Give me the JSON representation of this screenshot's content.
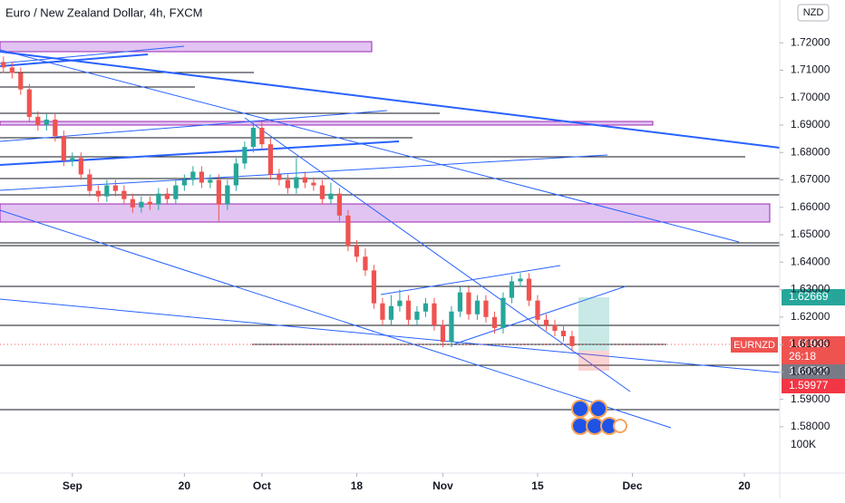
{
  "chart_data": {
    "type": "candlestick",
    "title": "Euro / New Zealand Dollar, 4h, FXCM",
    "currency": "NZD",
    "volume_label": "100K",
    "up_color": "#26a69a",
    "down_color": "#ef5350",
    "xlim": [
      -8.4,
      82.1
    ],
    "ylim": [
      1.5631,
      1.7356
    ],
    "xticks": [
      {
        "value": 0,
        "label": "Sep"
      },
      {
        "value": 13,
        "label": "20"
      },
      {
        "value": 22,
        "label": "Oct"
      },
      {
        "value": 33,
        "label": "18"
      },
      {
        "value": 43,
        "label": "Nov"
      },
      {
        "value": 54,
        "label": "15"
      },
      {
        "value": 65,
        "label": "Dec"
      },
      {
        "value": 78,
        "label": "20"
      }
    ],
    "yticks": [
      {
        "value": 1.58,
        "label": "1.58000"
      },
      {
        "value": 1.59,
        "label": "1.59000"
      },
      {
        "value": 1.6,
        "label": "1.60000"
      },
      {
        "value": 1.61,
        "label": "1.61000"
      },
      {
        "value": 1.62,
        "label": "1.62000"
      },
      {
        "value": 1.63,
        "label": "1.63000"
      },
      {
        "value": 1.64,
        "label": "1.64000"
      },
      {
        "value": 1.65,
        "label": "1.65000"
      },
      {
        "value": 1.66,
        "label": "1.66000"
      },
      {
        "value": 1.67,
        "label": "1.67000"
      },
      {
        "value": 1.68,
        "label": "1.68000"
      },
      {
        "value": 1.69,
        "label": "1.69000"
      },
      {
        "value": 1.7,
        "label": "1.70000"
      },
      {
        "value": 1.71,
        "label": "1.71000"
      },
      {
        "value": 1.72,
        "label": "1.72000"
      }
    ],
    "x": [
      -8,
      -7,
      -6,
      -5,
      -4,
      -3,
      -2,
      -1,
      0,
      1,
      2,
      3,
      4,
      5,
      6,
      7,
      8,
      9,
      10,
      11,
      12,
      13,
      14,
      15,
      16,
      17,
      18,
      19,
      20,
      21,
      22,
      23,
      24,
      25,
      26,
      27,
      28,
      29,
      30,
      31,
      32,
      33,
      34,
      35,
      36,
      37,
      38,
      39,
      40,
      41,
      42,
      43,
      44,
      45,
      46,
      47,
      48,
      49,
      50,
      51,
      52,
      53,
      54,
      55,
      56,
      57,
      58
    ],
    "candles": [
      [
        1.713,
        1.715,
        1.709,
        1.711
      ],
      [
        1.711,
        1.713,
        1.707,
        1.709
      ],
      [
        1.709,
        1.711,
        1.701,
        1.703
      ],
      [
        1.703,
        1.705,
        1.691,
        1.693
      ],
      [
        1.693,
        1.695,
        1.688,
        1.69
      ],
      [
        1.69,
        1.694,
        1.688,
        1.692
      ],
      [
        1.692,
        1.694,
        1.684,
        1.686
      ],
      [
        1.686,
        1.688,
        1.675,
        1.677
      ],
      [
        1.677,
        1.68,
        1.675,
        1.678
      ],
      [
        1.678,
        1.68,
        1.67,
        1.672
      ],
      [
        1.672,
        1.674,
        1.664,
        1.666
      ],
      [
        1.666,
        1.668,
        1.662,
        1.664
      ],
      [
        1.664,
        1.67,
        1.662,
        1.668
      ],
      [
        1.668,
        1.67,
        1.664,
        1.666
      ],
      [
        1.666,
        1.668,
        1.661,
        1.663
      ],
      [
        1.663,
        1.665,
        1.658,
        1.66
      ],
      [
        1.66,
        1.664,
        1.658,
        1.662
      ],
      [
        1.662,
        1.664,
        1.659,
        1.661
      ],
      [
        1.661,
        1.667,
        1.659,
        1.665
      ],
      [
        1.665,
        1.667,
        1.661,
        1.663
      ],
      [
        1.663,
        1.67,
        1.661,
        1.668
      ],
      [
        1.668,
        1.672,
        1.666,
        1.67
      ],
      [
        1.67,
        1.675,
        1.668,
        1.673
      ],
      [
        1.673,
        1.675,
        1.667,
        1.669
      ],
      [
        1.669,
        1.672,
        1.667,
        1.67
      ],
      [
        1.67,
        1.672,
        1.655,
        1.661
      ],
      [
        1.661,
        1.67,
        1.659,
        1.668
      ],
      [
        1.668,
        1.678,
        1.666,
        1.676
      ],
      [
        1.676,
        1.684,
        1.674,
        1.682
      ],
      [
        1.682,
        1.691,
        1.68,
        1.689
      ],
      [
        1.689,
        1.691,
        1.681,
        1.683
      ],
      [
        1.683,
        1.685,
        1.67,
        1.672
      ],
      [
        1.672,
        1.674,
        1.668,
        1.67
      ],
      [
        1.67,
        1.672,
        1.665,
        1.667
      ],
      [
        1.667,
        1.678,
        1.665,
        1.671
      ],
      [
        1.671,
        1.673,
        1.667,
        1.669
      ],
      [
        1.669,
        1.671,
        1.666,
        1.668
      ],
      [
        1.668,
        1.67,
        1.661,
        1.663
      ],
      [
        1.663,
        1.669,
        1.661,
        1.665
      ],
      [
        1.665,
        1.667,
        1.655,
        1.657
      ],
      [
        1.657,
        1.659,
        1.644,
        1.646
      ],
      [
        1.646,
        1.648,
        1.64,
        1.642
      ],
      [
        1.642,
        1.645,
        1.635,
        1.637
      ],
      [
        1.637,
        1.639,
        1.623,
        1.625
      ],
      [
        1.625,
        1.627,
        1.617,
        1.619
      ],
      [
        1.619,
        1.628,
        1.617,
        1.624
      ],
      [
        1.624,
        1.63,
        1.622,
        1.626
      ],
      [
        1.626,
        1.628,
        1.617,
        1.619
      ],
      [
        1.619,
        1.624,
        1.617,
        1.622
      ],
      [
        1.622,
        1.627,
        1.62,
        1.625
      ],
      [
        1.625,
        1.627,
        1.615,
        1.617
      ],
      [
        1.617,
        1.619,
        1.609,
        1.611
      ],
      [
        1.611,
        1.624,
        1.609,
        1.622
      ],
      [
        1.622,
        1.631,
        1.62,
        1.629
      ],
      [
        1.629,
        1.631,
        1.619,
        1.621
      ],
      [
        1.621,
        1.628,
        1.619,
        1.626
      ],
      [
        1.626,
        1.628,
        1.618,
        1.62
      ],
      [
        1.62,
        1.622,
        1.614,
        1.616
      ],
      [
        1.616,
        1.629,
        1.614,
        1.627
      ],
      [
        1.627,
        1.635,
        1.625,
        1.633
      ],
      [
        1.633,
        1.636,
        1.631,
        1.634
      ],
      [
        1.634,
        1.636,
        1.624,
        1.626
      ],
      [
        1.626,
        1.628,
        1.617,
        1.619
      ],
      [
        1.619,
        1.621,
        1.615,
        1.617
      ],
      [
        1.617,
        1.619,
        1.613,
        1.615
      ],
      [
        1.615,
        1.617,
        1.611,
        1.613
      ],
      [
        1.613,
        1.615,
        1.6075,
        1.6094
      ]
    ],
    "price_labels": {
      "target": "1.62669",
      "symbol": "EURNZD",
      "last": "1.60936",
      "countdown": "26:18",
      "entry": "1.60722",
      "stop": "1.59977"
    }
  }
}
